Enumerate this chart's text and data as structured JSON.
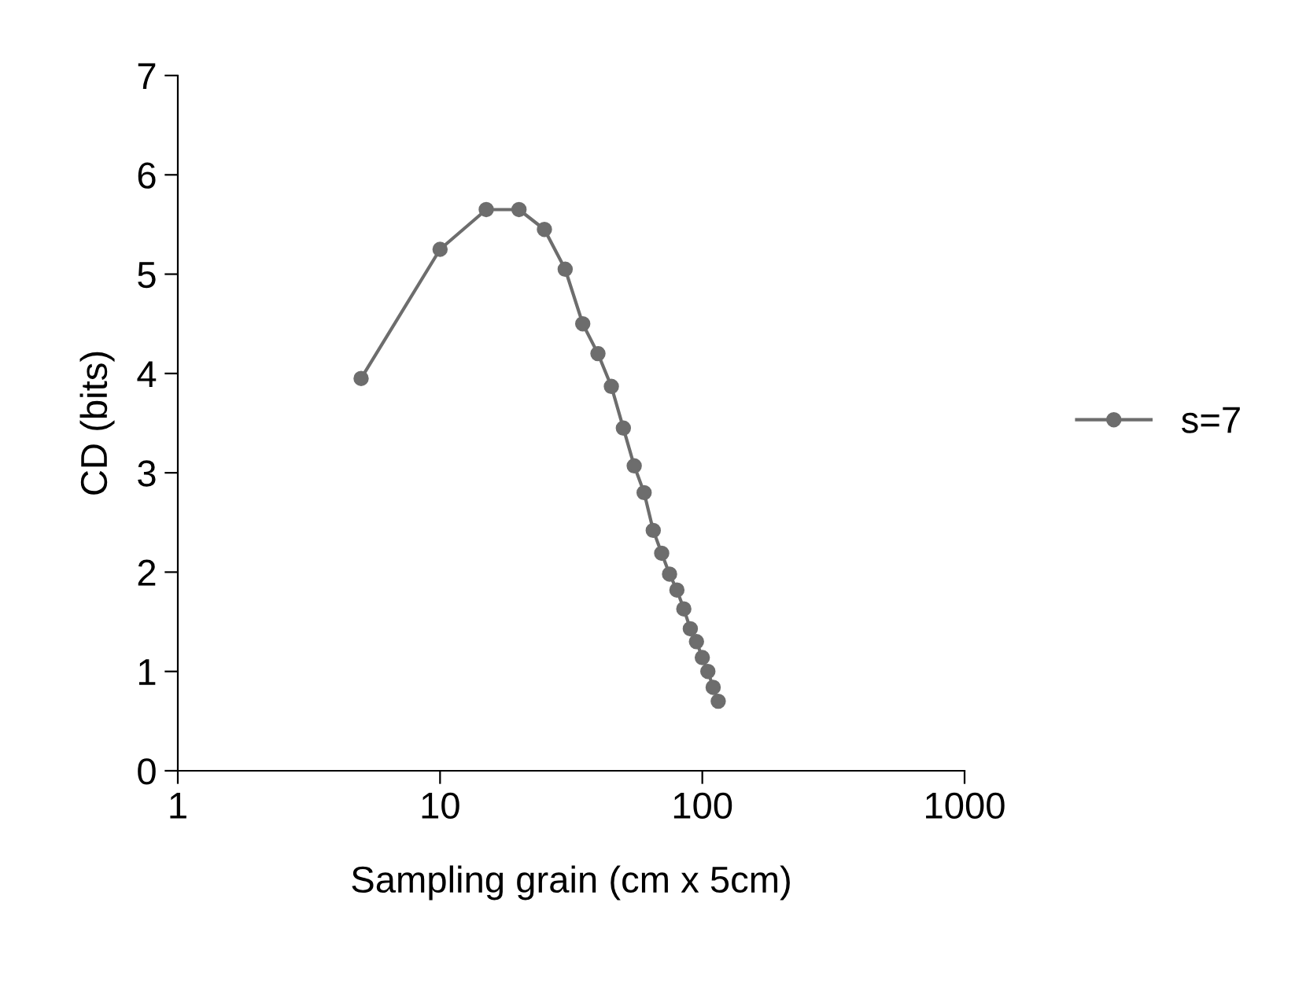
{
  "chart_data": {
    "type": "line",
    "xlabel": "Sampling grain (cm x 5cm)",
    "ylabel": "CD (bits)",
    "x": [
      5,
      10,
      15,
      20,
      25,
      30,
      35,
      40,
      45,
      50,
      55,
      60,
      65,
      70,
      75,
      80,
      85,
      90,
      95,
      100,
      105,
      110,
      115
    ],
    "series": [
      {
        "name": "s=7",
        "color": "#6d6d6d",
        "values": [
          3.95,
          5.25,
          5.65,
          5.65,
          5.45,
          5.05,
          4.5,
          4.2,
          3.87,
          3.45,
          3.07,
          2.8,
          2.42,
          2.19,
          1.98,
          1.82,
          1.63,
          1.43,
          1.3,
          1.14,
          1.0,
          0.84,
          0.7
        ]
      }
    ],
    "log": "x",
    "xlim": [
      1,
      1000
    ],
    "xticks": [
      1,
      10,
      100,
      1000
    ],
    "ylim": [
      0,
      7
    ],
    "yticks": [
      0,
      1,
      2,
      3,
      4,
      5,
      6,
      7
    ],
    "grid": false,
    "legend": "right",
    "marker": "circle",
    "line_style": "solid"
  }
}
